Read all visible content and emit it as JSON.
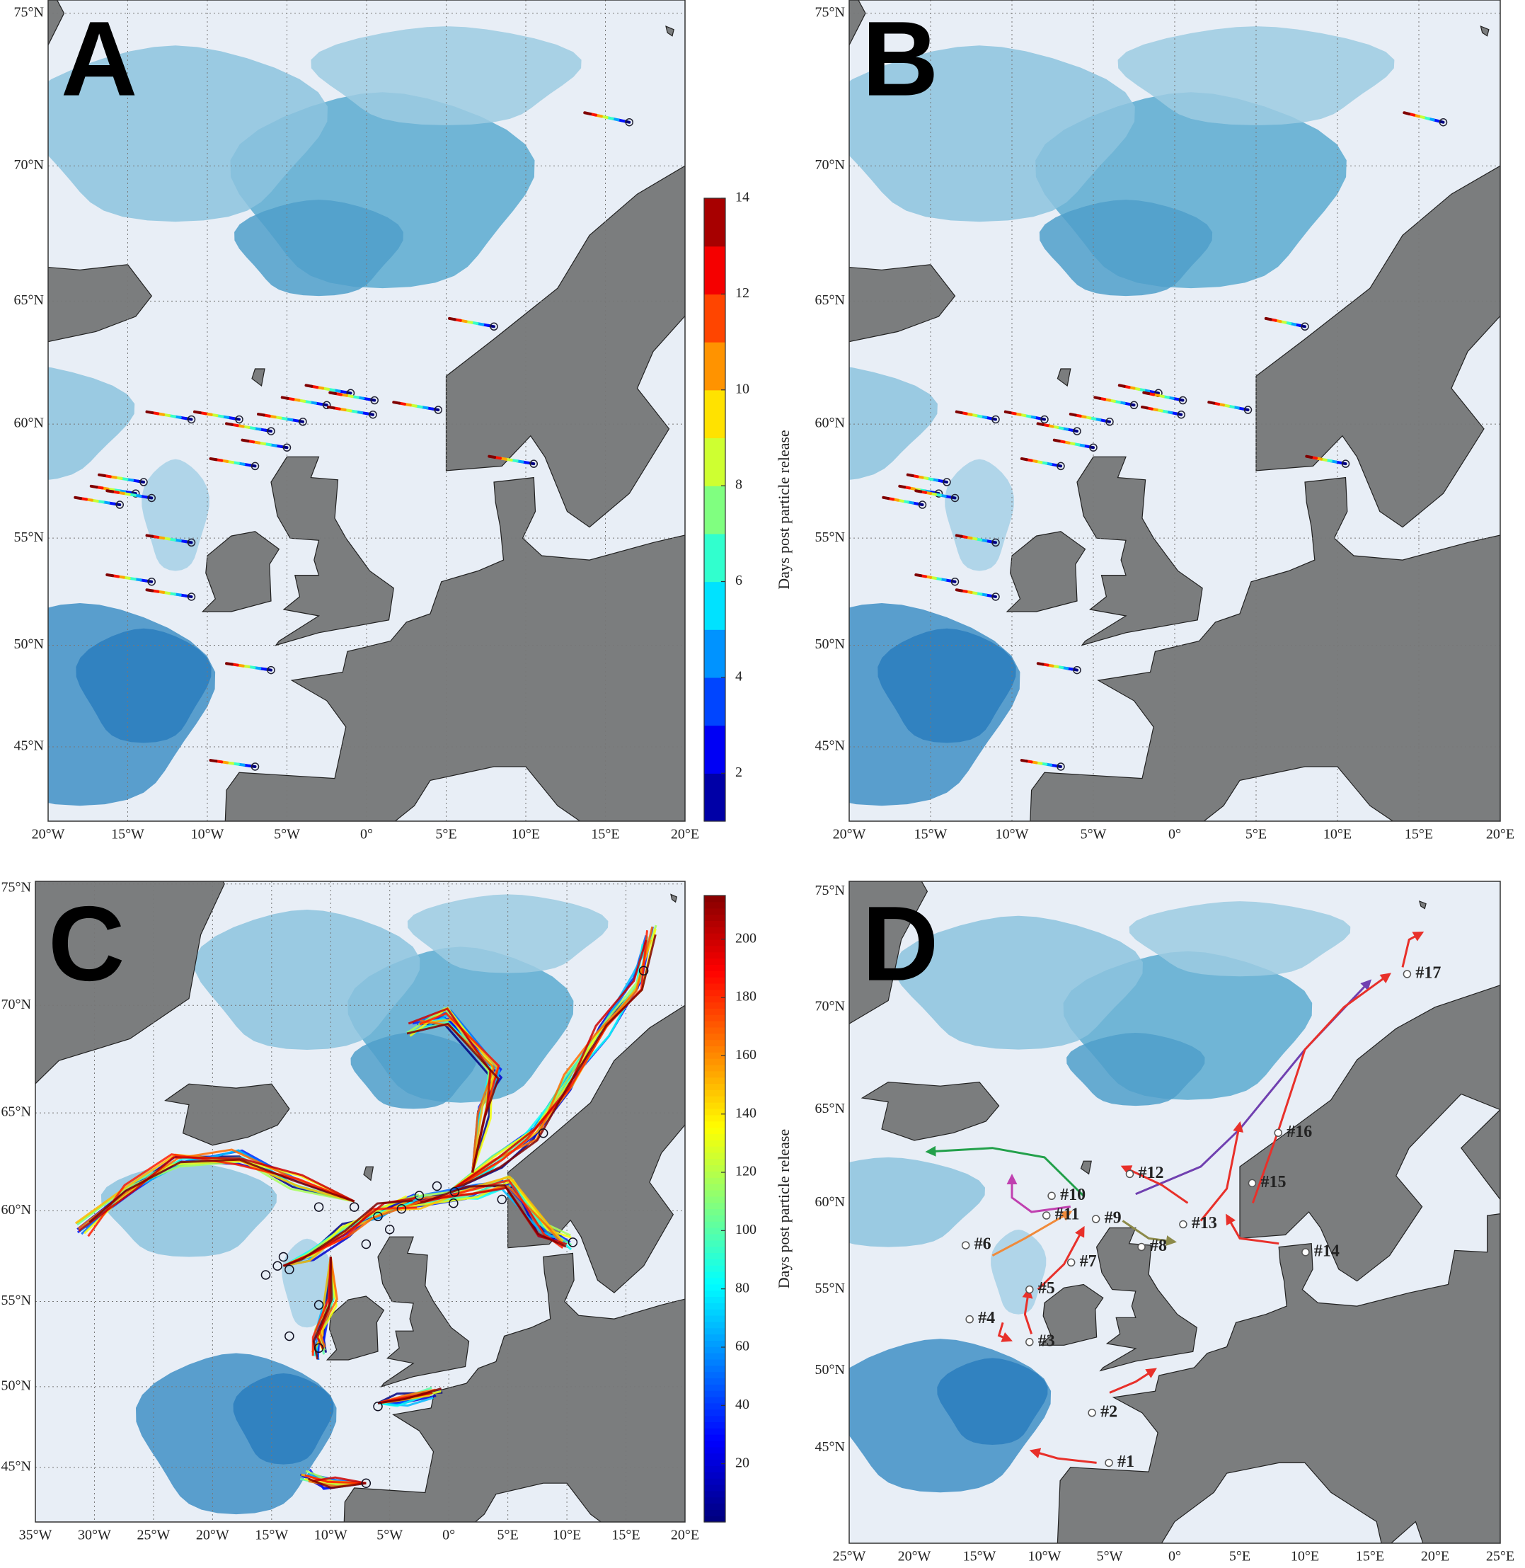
{
  "panels": [
    {
      "letter": "A",
      "xlim": [
        -20,
        20
      ],
      "ylim": [
        41.2,
        75.4
      ],
      "xticks": [
        {
          "value": -20,
          "label": "20°W"
        },
        {
          "value": -15,
          "label": "15°W"
        },
        {
          "value": -10,
          "label": "10°W"
        },
        {
          "value": -5,
          "label": "5°W"
        },
        {
          "value": 0,
          "label": "0°"
        },
        {
          "value": 5,
          "label": "5°E"
        },
        {
          "value": 10,
          "label": "10°E"
        },
        {
          "value": 15,
          "label": "15°E"
        },
        {
          "value": 20,
          "label": "20°E"
        }
      ],
      "yticks": [
        {
          "value": 45,
          "label": "45°N"
        },
        {
          "value": 50,
          "label": "50°N"
        },
        {
          "value": 55,
          "label": "55°N"
        },
        {
          "value": 60,
          "label": "60°N"
        },
        {
          "value": 65,
          "label": "65°N"
        },
        {
          "value": 70,
          "label": "70°N"
        },
        {
          "value": 75,
          "label": "75°N"
        }
      ],
      "grid": true,
      "colorbar": {
        "title": "Days post particle release",
        "clim": [
          1,
          14
        ],
        "ticks": [
          2,
          4,
          6,
          8,
          10,
          12,
          14
        ],
        "discrete": true
      }
    },
    {
      "letter": "B",
      "xlim": [
        -20,
        20
      ],
      "ylim": [
        41.2,
        75.4
      ],
      "xticks": [
        {
          "value": -20,
          "label": "20°W"
        },
        {
          "value": -15,
          "label": "15°W"
        },
        {
          "value": -10,
          "label": "10°W"
        },
        {
          "value": -5,
          "label": "5°W"
        },
        {
          "value": 0,
          "label": "0°"
        },
        {
          "value": 5,
          "label": "5°E"
        },
        {
          "value": 10,
          "label": "10°E"
        },
        {
          "value": 15,
          "label": "15°E"
        },
        {
          "value": 20,
          "label": "20°E"
        }
      ],
      "yticks": [
        {
          "value": 45,
          "label": "45°N"
        },
        {
          "value": 50,
          "label": "50°N"
        },
        {
          "value": 55,
          "label": "55°N"
        },
        {
          "value": 60,
          "label": "60°N"
        },
        {
          "value": 65,
          "label": "65°N"
        },
        {
          "value": 70,
          "label": "70°N"
        },
        {
          "value": 75,
          "label": "75°N"
        }
      ],
      "grid": true
    },
    {
      "letter": "C",
      "xlim": [
        -35,
        20
      ],
      "ylim": [
        41.5,
        75.1
      ],
      "xticks": [
        {
          "value": -35,
          "label": "35°W"
        },
        {
          "value": -30,
          "label": "30°W"
        },
        {
          "value": -25,
          "label": "25°W"
        },
        {
          "value": -20,
          "label": "20°W"
        },
        {
          "value": -15,
          "label": "15°W"
        },
        {
          "value": -10,
          "label": "10°W"
        },
        {
          "value": -5,
          "label": "5°W"
        },
        {
          "value": 0,
          "label": "0°"
        },
        {
          "value": 5,
          "label": "5°E"
        },
        {
          "value": 10,
          "label": "10°E"
        },
        {
          "value": 15,
          "label": "15°E"
        },
        {
          "value": 20,
          "label": "20°E"
        }
      ],
      "yticks": [
        {
          "value": 45,
          "label": "45°N"
        },
        {
          "value": 50,
          "label": "50°N"
        },
        {
          "value": 55,
          "label": "55°N"
        },
        {
          "value": 60,
          "label": "60°N"
        },
        {
          "value": 65,
          "label": "65°N"
        },
        {
          "value": 70,
          "label": "70°N"
        },
        {
          "value": 75,
          "label": "75°N"
        }
      ],
      "grid": true,
      "colorbar": {
        "title": "Days post particle release",
        "clim": [
          0,
          215
        ],
        "ticks": [
          20,
          40,
          60,
          80,
          100,
          120,
          140,
          160,
          180,
          200
        ],
        "discrete": false
      }
    },
    {
      "letter": "D",
      "xlim": [
        -25,
        25
      ],
      "ylim": [
        38.5,
        75.4
      ],
      "xticks": [
        {
          "value": -25,
          "label": "25°W"
        },
        {
          "value": -20,
          "label": "20°W"
        },
        {
          "value": -15,
          "label": "15°W"
        },
        {
          "value": -10,
          "label": "10°W"
        },
        {
          "value": -5,
          "label": "5°W"
        },
        {
          "value": 0,
          "label": "0°"
        },
        {
          "value": 5,
          "label": "5°E"
        },
        {
          "value": 10,
          "label": "10°E"
        },
        {
          "value": 15,
          "label": "15°E"
        },
        {
          "value": 20,
          "label": "20°E"
        },
        {
          "value": 25,
          "label": "25°E"
        }
      ],
      "yticks": [
        {
          "value": 45,
          "label": "45°N"
        },
        {
          "value": 50,
          "label": "50°N"
        },
        {
          "value": 55,
          "label": "55°N"
        },
        {
          "value": 60,
          "label": "60°N"
        },
        {
          "value": 65,
          "label": "65°N"
        },
        {
          "value": 70,
          "label": "70°N"
        },
        {
          "value": 75,
          "label": "75°N"
        }
      ],
      "grid": false,
      "annotations": [
        {
          "label": "#1",
          "color": "#e8302a"
        },
        {
          "label": "#2",
          "color": "#e8302a"
        },
        {
          "label": "#3",
          "color": "#e8302a"
        },
        {
          "label": "#4",
          "color": "#e8302a"
        },
        {
          "label": "#5",
          "color": "#e8302a"
        },
        {
          "label": "#6",
          "color": "#f08a3a"
        },
        {
          "label": "#7",
          "color": "#111111"
        },
        {
          "label": "#8",
          "color": "#8c8a4a"
        },
        {
          "label": "#9",
          "color": "#e8302a"
        },
        {
          "label": "#10",
          "color": "#22a04a"
        },
        {
          "label": "#11",
          "color": "#c040b0"
        },
        {
          "label": "#12",
          "color": "#7040b0"
        },
        {
          "label": "#13",
          "color": "#e8302a"
        },
        {
          "label": "#14",
          "color": "#e8302a"
        },
        {
          "label": "#15",
          "color": "#e8302a"
        },
        {
          "label": "#16",
          "color": "#e8302a"
        },
        {
          "label": "#17",
          "color": "#e8302a"
        }
      ]
    }
  ]
}
